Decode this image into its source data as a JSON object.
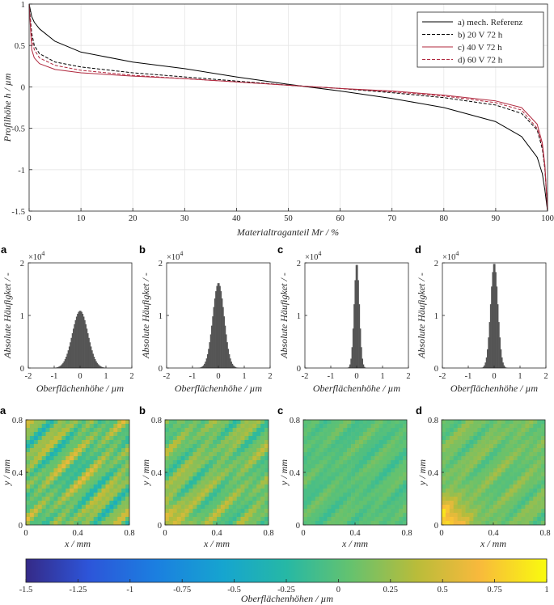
{
  "chart_data": [
    {
      "type": "line",
      "name": "abbott-firestone",
      "xlabel": "Materialtraganteil Mr / %",
      "ylabel": "Profilhöhe h / µm",
      "xlim": [
        0,
        100
      ],
      "ylim": [
        -1.5,
        1
      ],
      "xticks": [
        "0",
        "10",
        "20",
        "30",
        "40",
        "50",
        "60",
        "70",
        "80",
        "90",
        "100"
      ],
      "yticks": [
        "1",
        "0.5",
        "0",
        "-0.5",
        "-1",
        "-1.5"
      ],
      "grid": true,
      "legend_position": "top-right",
      "x": [
        0,
        0.5,
        1,
        2,
        5,
        10,
        20,
        30,
        40,
        50,
        60,
        70,
        80,
        90,
        95,
        98,
        99,
        99.5,
        100
      ],
      "series": [
        {
          "name": "a) mech. Referenz",
          "color": "#000000",
          "style": "solid",
          "values": [
            1.0,
            0.85,
            0.78,
            0.7,
            0.55,
            0.42,
            0.3,
            0.22,
            0.12,
            0.03,
            -0.05,
            -0.14,
            -0.25,
            -0.42,
            -0.6,
            -0.85,
            -1.05,
            -1.25,
            -1.5
          ]
        },
        {
          "name": "b) 20 V 72 h",
          "color": "#000000",
          "style": "dashed",
          "values": [
            1.0,
            0.65,
            0.5,
            0.4,
            0.3,
            0.24,
            0.17,
            0.12,
            0.07,
            0.02,
            -0.02,
            -0.07,
            -0.13,
            -0.22,
            -0.32,
            -0.52,
            -0.75,
            -1.0,
            -1.5
          ]
        },
        {
          "name": "c) 40 V 72 h",
          "color": "#b0283e",
          "style": "solid",
          "values": [
            1.0,
            0.45,
            0.35,
            0.28,
            0.21,
            0.17,
            0.13,
            0.1,
            0.06,
            0.02,
            -0.02,
            -0.05,
            -0.1,
            -0.17,
            -0.25,
            -0.45,
            -0.68,
            -0.95,
            -1.5
          ]
        },
        {
          "name": "d) 60 V 72 h",
          "color": "#b0283e",
          "style": "dashed",
          "values": [
            1.0,
            0.58,
            0.45,
            0.35,
            0.26,
            0.2,
            0.14,
            0.1,
            0.06,
            0.02,
            -0.02,
            -0.06,
            -0.11,
            -0.19,
            -0.28,
            -0.5,
            -0.72,
            -0.98,
            -1.5
          ]
        }
      ]
    },
    {
      "type": "bar",
      "name": "histograms",
      "xlabel": "Oberflächenhöhe / µm",
      "ylabel": "Absolute Häufigket / -",
      "xlim": [
        -2,
        2
      ],
      "ylim": [
        0,
        20000
      ],
      "xticks": [
        "-2",
        "-1",
        "0",
        "1",
        "2"
      ],
      "yticks": [
        "0",
        "1",
        "2"
      ],
      "scale_label": "×10",
      "scale_exp": "4",
      "color": "#555555",
      "panels": [
        {
          "letter": "a",
          "sigma": 0.3,
          "peak": 10900
        },
        {
          "letter": "b",
          "sigma": 0.22,
          "peak": 16200
        },
        {
          "letter": "c",
          "sigma": 0.1,
          "peak": 20000
        },
        {
          "letter": "d",
          "sigma": 0.14,
          "peak": 20000
        }
      ]
    },
    {
      "type": "heatmap",
      "name": "surface-maps",
      "xlabel": "x / mm",
      "ylabel": "y / mm",
      "xlim": [
        0,
        0.8
      ],
      "ylim": [
        0,
        0.8
      ],
      "xticks": [
        "0",
        "0.4",
        "0.8"
      ],
      "yticks": [
        "0",
        "0.4",
        "0.8"
      ],
      "panels": [
        {
          "letter": "a",
          "base": 0.1,
          "amp": 0.35,
          "corner": 0.0
        },
        {
          "letter": "b",
          "base": 0.1,
          "amp": 0.25,
          "corner": 0.4
        },
        {
          "letter": "c",
          "base": 0.0,
          "amp": 0.12,
          "corner": 0.0
        },
        {
          "letter": "d",
          "base": 0.1,
          "amp": 0.15,
          "corner": 0.85
        }
      ]
    },
    {
      "type": "colorbar",
      "name": "colorbar",
      "label": "Oberflächenhöhen / µm",
      "range": [
        -1.5,
        1
      ],
      "ticks": [
        "-1.5",
        "-1.25",
        "-1",
        "-0.75",
        "-0.5",
        "-0.25",
        "0",
        "0.25",
        "0.5",
        "0.75",
        "1"
      ]
    }
  ]
}
